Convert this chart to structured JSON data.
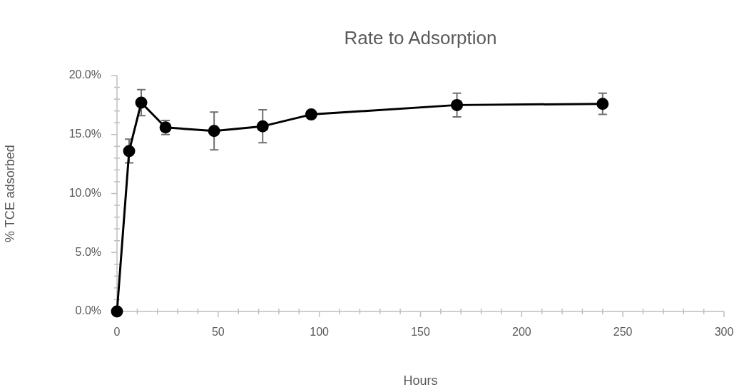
{
  "chart_data": {
    "type": "line",
    "title": "Rate to Adsorption",
    "xlabel": "Hours",
    "ylabel": "% TCE adsorbed",
    "marker": "circle",
    "line_style": "solid",
    "x": [
      0,
      6,
      12,
      24,
      48,
      72,
      96,
      168,
      240
    ],
    "series": [
      {
        "color": "#000000",
        "values": [
          0,
          13.6,
          17.7,
          15.6,
          15.3,
          15.7,
          16.7,
          17.5,
          17.6
        ],
        "errors": [
          null,
          1.0,
          1.1,
          0.6,
          1.6,
          1.4,
          null,
          1.0,
          0.9
        ]
      }
    ],
    "xlim": [
      0,
      300
    ],
    "xticks": [
      0,
      {
        "value": 10,
        "label": null
      },
      {
        "value": 20,
        "label": null
      },
      {
        "value": 30,
        "label": null
      },
      {
        "value": 40,
        "label": null
      },
      50,
      {
        "value": 60,
        "label": null
      },
      {
        "value": 70,
        "label": null
      },
      {
        "value": 80,
        "label": null
      },
      {
        "value": 90,
        "label": null
      },
      100,
      {
        "value": 110,
        "label": null
      },
      {
        "value": 120,
        "label": null
      },
      {
        "value": 130,
        "label": null
      },
      {
        "value": 140,
        "label": null
      },
      150,
      {
        "value": 160,
        "label": null
      },
      {
        "value": 170,
        "label": null
      },
      {
        "value": 180,
        "label": null
      },
      {
        "value": 190,
        "label": null
      },
      200,
      {
        "value": 210,
        "label": null
      },
      {
        "value": 220,
        "label": null
      },
      {
        "value": 230,
        "label": null
      },
      {
        "value": 240,
        "label": null
      },
      250,
      {
        "value": 260,
        "label": null
      },
      {
        "value": 270,
        "label": null
      },
      {
        "value": 280,
        "label": null
      },
      {
        "value": 290,
        "label": null
      },
      300
    ],
    "ylim": [
      0,
      20
    ],
    "yticks": [
      {
        "value": 0,
        "label": "0.0%"
      },
      {
        "value": 1,
        "label": null
      },
      {
        "value": 2,
        "label": null
      },
      {
        "value": 3,
        "label": null
      },
      {
        "value": 4,
        "label": null
      },
      {
        "value": 5,
        "label": "5.0%"
      },
      {
        "value": 6,
        "label": null
      },
      {
        "value": 7,
        "label": null
      },
      {
        "value": 8,
        "label": null
      },
      {
        "value": 9,
        "label": null
      },
      {
        "value": 10,
        "label": "10.0%"
      },
      {
        "value": 11,
        "label": null
      },
      {
        "value": 12,
        "label": null
      },
      {
        "value": 13,
        "label": null
      },
      {
        "value": 14,
        "label": null
      },
      {
        "value": 15,
        "label": "15.0%"
      },
      {
        "value": 16,
        "label": null
      },
      {
        "value": 17,
        "label": null
      },
      {
        "value": 18,
        "label": null
      },
      {
        "value": 19,
        "label": null
      },
      {
        "value": 20,
        "label": "20.0%"
      }
    ]
  }
}
